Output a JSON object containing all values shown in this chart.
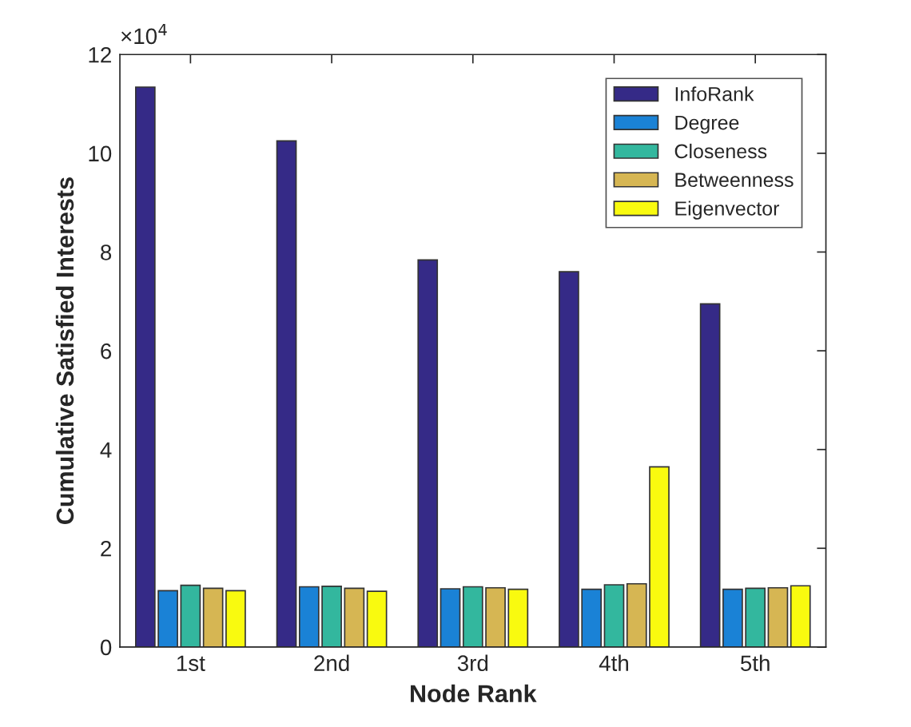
{
  "chart_data": {
    "type": "bar",
    "xlabel": "Node Rank",
    "ylabel": "Cumulative Satisfied Interests",
    "categories": [
      "1st",
      "2nd",
      "3rd",
      "4th",
      "5th"
    ],
    "series": [
      {
        "name": "InfoRank",
        "color": "#352a87",
        "values": [
          11.34,
          10.25,
          7.84,
          7.6,
          6.95
        ]
      },
      {
        "name": "Degree",
        "color": "#1a82d6",
        "values": [
          1.14,
          1.22,
          1.18,
          1.17,
          1.17
        ]
      },
      {
        "name": "Closeness",
        "color": "#33b79e",
        "values": [
          1.25,
          1.23,
          1.22,
          1.26,
          1.19
        ]
      },
      {
        "name": "Betweenness",
        "color": "#d6b653",
        "values": [
          1.19,
          1.19,
          1.2,
          1.28,
          1.2
        ]
      },
      {
        "name": "Eigenvector",
        "color": "#f9fa0f",
        "values": [
          1.14,
          1.13,
          1.17,
          3.65,
          1.24
        ]
      }
    ],
    "ylim": [
      0,
      12
    ],
    "yticks": [
      0,
      2,
      4,
      6,
      8,
      10,
      12
    ],
    "annotations": [
      "×10$^{4}$"
    ],
    "legend": "top right",
    "grid": false
  }
}
